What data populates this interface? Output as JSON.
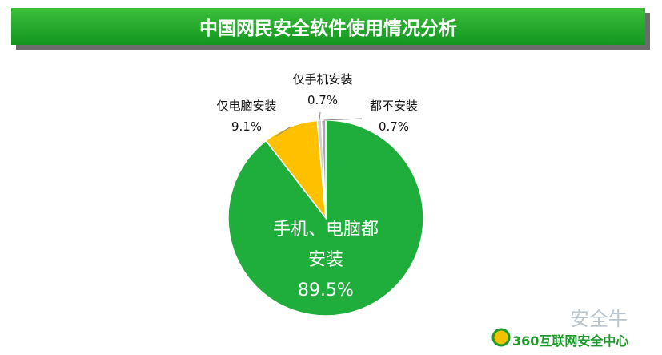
{
  "chart_data": {
    "type": "pie",
    "title": "中国网民安全软件使用情况分析",
    "categories": [
      "手机、电脑都安装",
      "仅电脑安装",
      "仅手机安装",
      "都不安装"
    ],
    "values": [
      89.5,
      9.1,
      0.7,
      0.7
    ],
    "value_labels": [
      "89.5%",
      "9.1%",
      "0.7%",
      "0.7%"
    ],
    "colors": [
      "#1fae3c",
      "#ffc000",
      "#d0d0d0",
      "#a8a8a8"
    ],
    "watermark": "安全牛",
    "source": "360互联网安全中心"
  }
}
